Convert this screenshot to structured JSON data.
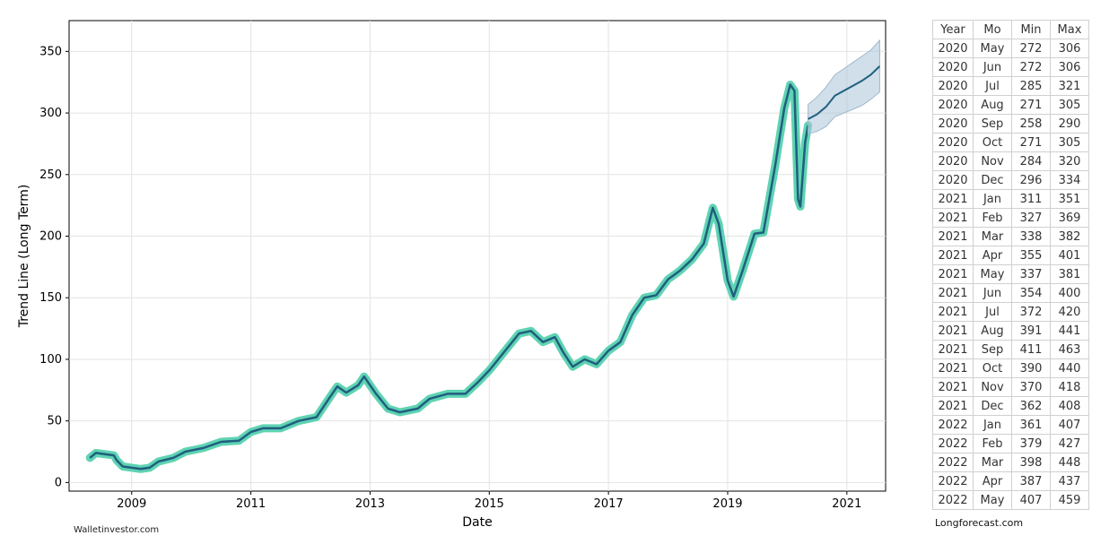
{
  "chart_data": {
    "type": "line",
    "title": "",
    "xlabel": "Date",
    "ylabel": "Trend Line (Long Term)",
    "xlim": [
      2007.95,
      2021.65
    ],
    "ylim": [
      -7,
      375
    ],
    "x_ticks": [
      2009,
      2011,
      2013,
      2015,
      2017,
      2019,
      2021
    ],
    "x_tick_labels": [
      "2009",
      "2011",
      "2013",
      "2015",
      "2017",
      "2019",
      "2021"
    ],
    "y_ticks": [
      0,
      50,
      100,
      150,
      200,
      250,
      300,
      350
    ],
    "y_tick_labels": [
      "0",
      "50",
      "100",
      "150",
      "200",
      "250",
      "300",
      "350"
    ],
    "grid": true,
    "legend": "none",
    "colors": {
      "history_line": "#1f5f7e",
      "history_band": "#5fd3b3",
      "forecast_line": "#1f5f7e",
      "forecast_band": "#aac4d8"
    },
    "series": [
      {
        "role": "history",
        "points": [
          [
            2008.3,
            20
          ],
          [
            2008.4,
            24
          ],
          [
            2008.55,
            23
          ],
          [
            2008.7,
            22
          ],
          [
            2008.75,
            18
          ],
          [
            2008.85,
            13
          ],
          [
            2009.0,
            12
          ],
          [
            2009.15,
            11
          ],
          [
            2009.3,
            12
          ],
          [
            2009.45,
            17
          ],
          [
            2009.7,
            20
          ],
          [
            2009.9,
            25
          ],
          [
            2010.2,
            28
          ],
          [
            2010.5,
            33
          ],
          [
            2010.8,
            34
          ],
          [
            2011.0,
            41
          ],
          [
            2011.2,
            44
          ],
          [
            2011.5,
            44
          ],
          [
            2011.8,
            50
          ],
          [
            2012.1,
            53
          ],
          [
            2012.35,
            71
          ],
          [
            2012.45,
            78
          ],
          [
            2012.6,
            73
          ],
          [
            2012.8,
            79
          ],
          [
            2012.9,
            86
          ],
          [
            2013.1,
            72
          ],
          [
            2013.3,
            60
          ],
          [
            2013.5,
            57
          ],
          [
            2013.8,
            60
          ],
          [
            2014.0,
            68
          ],
          [
            2014.3,
            72
          ],
          [
            2014.6,
            72
          ],
          [
            2014.8,
            81
          ],
          [
            2015.0,
            91
          ],
          [
            2015.3,
            109
          ],
          [
            2015.5,
            121
          ],
          [
            2015.7,
            123
          ],
          [
            2015.9,
            114
          ],
          [
            2016.1,
            118
          ],
          [
            2016.25,
            105
          ],
          [
            2016.4,
            94
          ],
          [
            2016.6,
            100
          ],
          [
            2016.8,
            96
          ],
          [
            2017.0,
            107
          ],
          [
            2017.2,
            114
          ],
          [
            2017.4,
            136
          ],
          [
            2017.6,
            150
          ],
          [
            2017.8,
            152
          ],
          [
            2018.0,
            165
          ],
          [
            2018.2,
            172
          ],
          [
            2018.4,
            181
          ],
          [
            2018.6,
            194
          ],
          [
            2018.75,
            223
          ],
          [
            2018.85,
            210
          ],
          [
            2019.0,
            164
          ],
          [
            2019.1,
            151
          ],
          [
            2019.25,
            172
          ],
          [
            2019.45,
            202
          ],
          [
            2019.6,
            203
          ],
          [
            2019.8,
            258
          ],
          [
            2019.95,
            304
          ],
          [
            2020.05,
            323
          ],
          [
            2020.12,
            318
          ],
          [
            2020.18,
            230
          ],
          [
            2020.22,
            224
          ],
          [
            2020.3,
            276
          ],
          [
            2020.35,
            290
          ]
        ]
      },
      {
        "role": "forecast",
        "points": [
          [
            2020.35,
            295
          ],
          [
            2020.5,
            299
          ],
          [
            2020.65,
            305
          ],
          [
            2020.8,
            314
          ],
          [
            2020.95,
            318
          ],
          [
            2021.1,
            322
          ],
          [
            2021.25,
            326
          ],
          [
            2021.4,
            331
          ],
          [
            2021.55,
            338
          ]
        ],
        "band_width": [
          12,
          14,
          16,
          17,
          18,
          19,
          20,
          20,
          21
        ]
      }
    ]
  },
  "table": {
    "headers": [
      "Year",
      "Mo",
      "Min",
      "Max"
    ],
    "rows": [
      [
        "2020",
        "May",
        "272",
        "306"
      ],
      [
        "2020",
        "Jun",
        "272",
        "306"
      ],
      [
        "2020",
        "Jul",
        "285",
        "321"
      ],
      [
        "2020",
        "Aug",
        "271",
        "305"
      ],
      [
        "2020",
        "Sep",
        "258",
        "290"
      ],
      [
        "2020",
        "Oct",
        "271",
        "305"
      ],
      [
        "2020",
        "Nov",
        "284",
        "320"
      ],
      [
        "2020",
        "Dec",
        "296",
        "334"
      ],
      [
        "2021",
        "Jan",
        "311",
        "351"
      ],
      [
        "2021",
        "Feb",
        "327",
        "369"
      ],
      [
        "2021",
        "Mar",
        "338",
        "382"
      ],
      [
        "2021",
        "Apr",
        "355",
        "401"
      ],
      [
        "2021",
        "May",
        "337",
        "381"
      ],
      [
        "2021",
        "Jun",
        "354",
        "400"
      ],
      [
        "2021",
        "Jul",
        "372",
        "420"
      ],
      [
        "2021",
        "Aug",
        "391",
        "441"
      ],
      [
        "2021",
        "Sep",
        "411",
        "463"
      ],
      [
        "2021",
        "Oct",
        "390",
        "440"
      ],
      [
        "2021",
        "Nov",
        "370",
        "418"
      ],
      [
        "2021",
        "Dec",
        "362",
        "408"
      ],
      [
        "2022",
        "Jan",
        "361",
        "407"
      ],
      [
        "2022",
        "Feb",
        "379",
        "427"
      ],
      [
        "2022",
        "Mar",
        "398",
        "448"
      ],
      [
        "2022",
        "Apr",
        "387",
        "437"
      ],
      [
        "2022",
        "May",
        "407",
        "459"
      ]
    ]
  },
  "credits": {
    "left": "Walletinvestor.com",
    "right": "Longforecast.com"
  }
}
